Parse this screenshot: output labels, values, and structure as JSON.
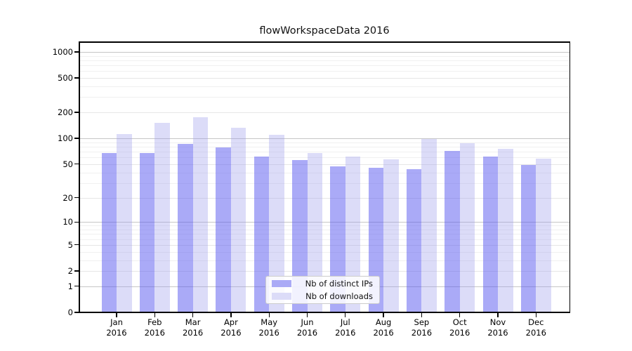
{
  "figure": {
    "background": "#ffffff"
  },
  "chart_data": {
    "type": "bar",
    "title": "flowWorkspaceData 2016",
    "months": [
      "Jan",
      "Feb",
      "Mar",
      "Apr",
      "May",
      "Jun",
      "Jul",
      "Aug",
      "Sep",
      "Oct",
      "Nov",
      "Dec"
    ],
    "year": "2016",
    "categories": [
      "Jan 2016",
      "Feb 2016",
      "Mar 2016",
      "Apr 2016",
      "May 2016",
      "Jun 2016",
      "Jul 2016",
      "Aug 2016",
      "Sep 2016",
      "Oct 2016",
      "Nov 2016",
      "Dec 2016"
    ],
    "series": [
      {
        "name": "Nb of distinct IPs",
        "color": "#aaaaf6",
        "fill_rgba": "rgba(85,85,240,0.5)",
        "values": [
          68,
          68,
          86,
          79,
          61,
          56,
          47,
          45,
          44,
          71,
          61,
          49
        ]
      },
      {
        "name": "Nb of downloads",
        "color": "#dcdcf8",
        "fill_rgba": "rgba(155,155,235,0.35)",
        "values": [
          112,
          152,
          176,
          134,
          111,
          67,
          62,
          57,
          99,
          88,
          76,
          58
        ]
      }
    ],
    "y_axis": {
      "scale": "log1p",
      "ticks": [
        0,
        1,
        2,
        5,
        10,
        20,
        50,
        100,
        200,
        500,
        1000
      ],
      "major_grid_values": [
        1,
        10,
        100,
        1000
      ],
      "mid_grid_values": [
        2,
        5,
        20,
        50,
        200,
        500
      ],
      "minor_grid_values": [
        3,
        4,
        6,
        7,
        8,
        9,
        30,
        40,
        60,
        70,
        80,
        90,
        300,
        400,
        600,
        700,
        800,
        900
      ]
    },
    "grid": true,
    "legend_position": "inside-bottom-center",
    "colors": {
      "grid_major": "#c6c6c6",
      "grid_mid": "#e6e6e6",
      "grid_minor": "#f0f0f0",
      "axis": "#000000"
    }
  }
}
